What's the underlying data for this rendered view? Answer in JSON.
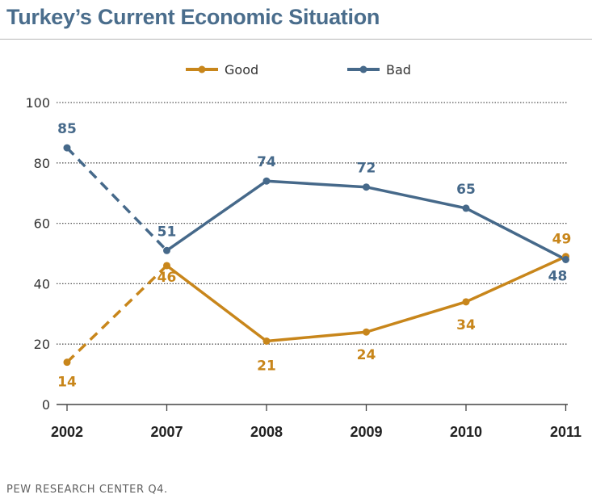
{
  "title": "Turkey’s Current Economic Situation",
  "source": "PEW RESEARCH CENTER Q4.",
  "colors": {
    "good": "#c8861b",
    "bad": "#46698a",
    "title": "#4a6d8c"
  },
  "chart_data": {
    "type": "line",
    "title": "Turkey’s Current Economic Situation",
    "categories": [
      "2002",
      "2007",
      "2008",
      "2009",
      "2010",
      "2011"
    ],
    "ylim": [
      0,
      100
    ],
    "yticks": [
      0,
      20,
      40,
      60,
      80,
      100
    ],
    "grid": true,
    "legend_position": "top",
    "dashed_segment": "2002-2007",
    "series": [
      {
        "name": "Good",
        "color": "#c8861b",
        "values": [
          14,
          46,
          21,
          24,
          34,
          49
        ],
        "labels": [
          "14",
          "46",
          "21",
          "24",
          "34",
          "49"
        ]
      },
      {
        "name": "Bad",
        "color": "#46698a",
        "values": [
          85,
          51,
          74,
          72,
          65,
          48
        ],
        "labels": [
          "85",
          "51",
          "74",
          "72",
          "65",
          "48"
        ]
      }
    ]
  }
}
